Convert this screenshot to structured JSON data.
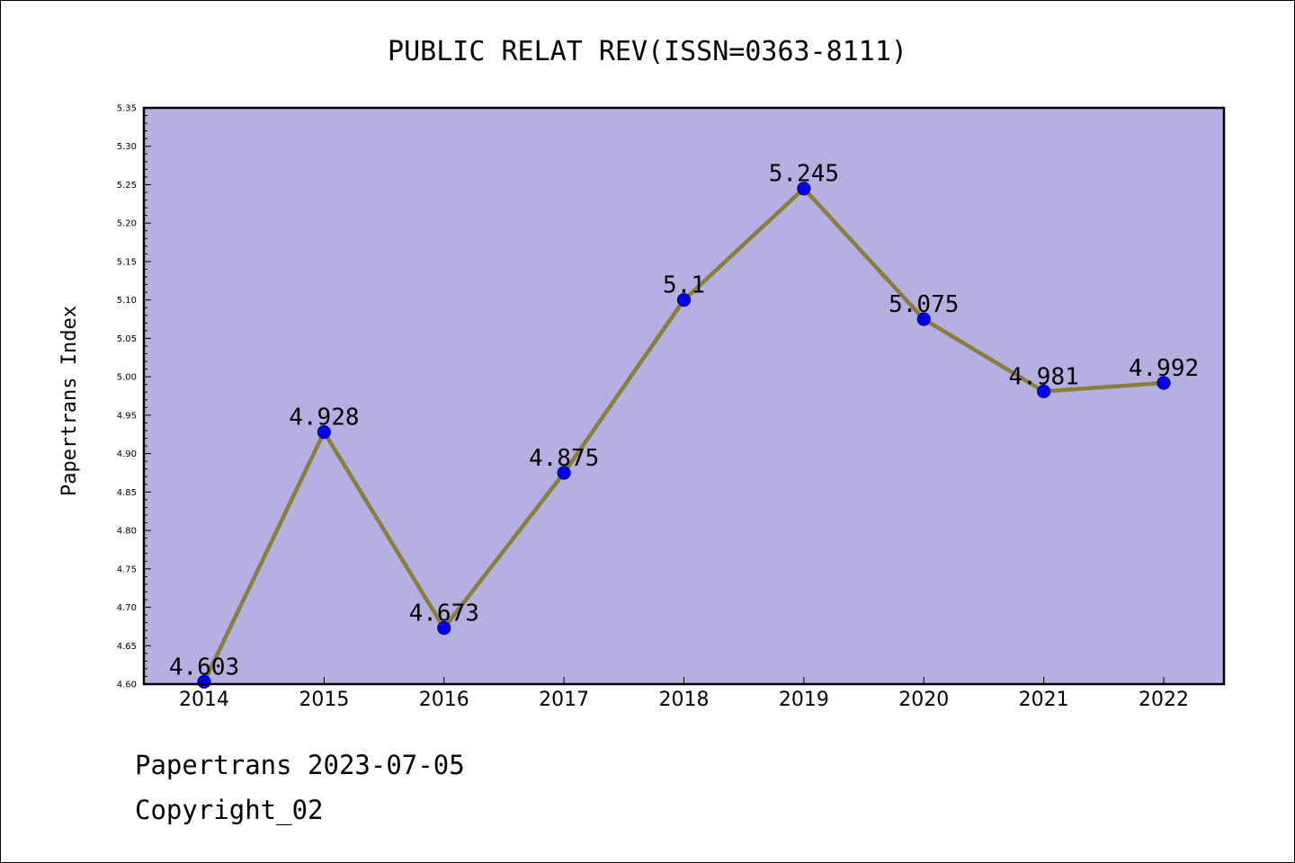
{
  "chart_data": {
    "type": "line",
    "title": "PUBLIC RELAT REV(ISSN=0363-8111)",
    "xlabel": "",
    "ylabel": "Papertrans Index",
    "categories": [
      "2014",
      "2015",
      "2016",
      "2017",
      "2018",
      "2019",
      "2020",
      "2021",
      "2022"
    ],
    "series": [
      {
        "values": [
          4.603,
          4.928,
          4.673,
          4.875,
          5.1,
          5.245,
          5.075,
          4.981,
          4.992
        ],
        "data_labels": [
          "4.603",
          "4.928",
          "4.673",
          "4.875",
          "5.1",
          "5.245",
          "5.075",
          "4.981",
          "4.992"
        ]
      }
    ],
    "ylim": [
      4.6,
      5.35
    ],
    "yticks": [
      "4.60",
      "4.65",
      "4.70",
      "4.75",
      "4.80",
      "4.85",
      "4.90",
      "4.95",
      "5.00",
      "5.05",
      "5.10",
      "5.15",
      "5.20",
      "5.25",
      "5.30",
      "5.35"
    ],
    "grid": false,
    "legend": "none",
    "colors": {
      "plot_background": "#b5afe2",
      "line": "#8b7d3a",
      "marker_fill": "#0000ee",
      "marker_edge": "#00008b"
    }
  },
  "footer": {
    "date_line": "Papertrans 2023-07-05",
    "copyright_line": "Copyright_02"
  }
}
